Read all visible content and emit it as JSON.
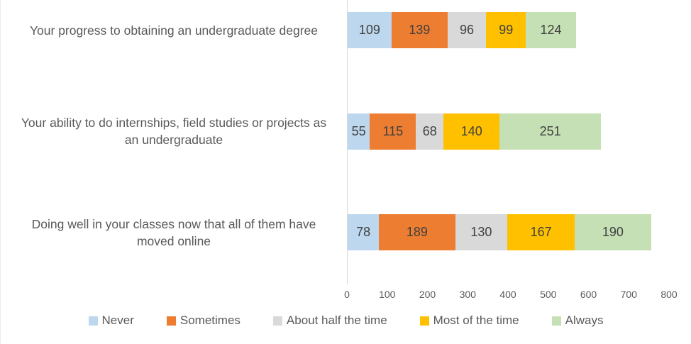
{
  "chart_data": {
    "type": "bar",
    "orientation": "horizontal",
    "stacked": true,
    "title": "",
    "xlabel": "",
    "ylabel": "",
    "categories": [
      "Your progress to obtaining an undergraduate degree",
      "Your ability to do internships, field studies or projects as an undergraduate",
      "Doing well in your classes now that all of them have moved online"
    ],
    "series": [
      {
        "name": "Never",
        "color": "#BDD7EE",
        "values": [
          109,
          55,
          78
        ]
      },
      {
        "name": "Sometimes",
        "color": "#ED7D31",
        "values": [
          139,
          115,
          189
        ]
      },
      {
        "name": "About half the time",
        "color": "#D9D9D9",
        "values": [
          96,
          68,
          130
        ]
      },
      {
        "name": "Most of the time",
        "color": "#FFC000",
        "values": [
          99,
          140,
          167
        ]
      },
      {
        "name": "Always",
        "color": "#C5E0B4",
        "values": [
          124,
          251,
          190
        ]
      }
    ],
    "x_axis": {
      "min": 0,
      "max": 800,
      "tick_interval": 100,
      "ticks": [
        0,
        100,
        200,
        300,
        400,
        500,
        600,
        700,
        800
      ]
    },
    "legend_position": "bottom",
    "grid": false,
    "colors": {
      "axis_line": "#d9d9d9",
      "value_label_text": "#404040",
      "category_label_text": "#595959",
      "tick_label_text": "#595959",
      "legend_text": "#595959"
    }
  }
}
